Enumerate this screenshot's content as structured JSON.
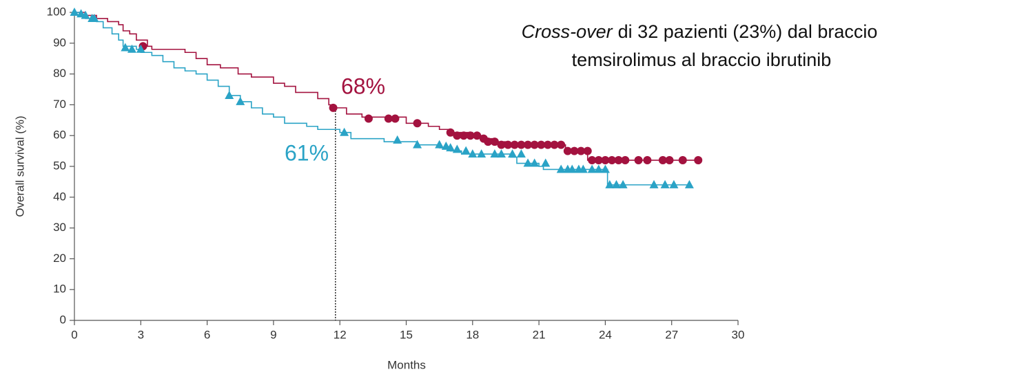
{
  "chart_data": {
    "type": "survival",
    "xlabel": "Months",
    "ylabel": "Overall survival (%)",
    "xlim": [
      0,
      30
    ],
    "xticks": [
      0,
      3,
      6,
      9,
      12,
      15,
      18,
      21,
      24,
      27,
      30
    ],
    "ylim": [
      0,
      100
    ],
    "yticks": [
      0,
      10,
      20,
      30,
      40,
      50,
      60,
      70,
      80,
      90,
      100
    ],
    "annotation": {
      "italic": "Cross-over",
      "text": "di 32 pazienti (23%) dal braccio",
      "line2": "temsirolimus al braccio ibrutinib"
    },
    "reference_line": {
      "x": 11.8,
      "y": 69
    },
    "series": [
      {
        "color": "#a3123f",
        "marker": "circle",
        "label": "68%",
        "x": [
          0,
          0.5,
          1,
          1.5,
          2,
          2.2,
          2.5,
          2.8,
          3.3,
          3.5,
          5,
          5.5,
          6,
          6.6,
          7.4,
          8,
          9,
          9.5,
          10,
          11,
          11.5,
          11.7,
          12.3,
          13,
          15,
          16,
          16.5,
          17,
          18,
          18.5,
          19,
          19.5,
          22.2,
          23.2,
          28.3
        ],
        "values": [
          100,
          99,
          98,
          97,
          96,
          94,
          93,
          91,
          89,
          88,
          87,
          85,
          83,
          82,
          80,
          79,
          77,
          76,
          74,
          72,
          70,
          69,
          67,
          66,
          64,
          63,
          62,
          61,
          60,
          59,
          58,
          57,
          55,
          52,
          52
        ],
        "censored_x": [
          3.1,
          11.7,
          13.3,
          14.2,
          14.5,
          15.5,
          17,
          17.3,
          17.6,
          17.9,
          18.2,
          18.5,
          18.7,
          19,
          19.3,
          19.6,
          19.9,
          20.2,
          20.5,
          20.8,
          21.1,
          21.4,
          21.7,
          22,
          22.3,
          22.6,
          22.9,
          23.2,
          23.4,
          23.7,
          24,
          24.3,
          24.6,
          24.9,
          25.5,
          25.9,
          26.6,
          26.9,
          27.5,
          28.2
        ],
        "censored_values": [
          89,
          69,
          65.5,
          65.5,
          65.5,
          64,
          61,
          60,
          60,
          60,
          60,
          59,
          58,
          58,
          57,
          57,
          57,
          57,
          57,
          57,
          57,
          57,
          57,
          57,
          55,
          55,
          55,
          55,
          52,
          52,
          52,
          52,
          52,
          52,
          52,
          52,
          52,
          52,
          52,
          52
        ]
      },
      {
        "color": "#2aa3c6",
        "marker": "triangle",
        "label": "61%",
        "x": [
          0,
          0.3,
          0.5,
          1,
          1.3,
          1.7,
          2,
          2.2,
          2.8,
          3,
          3.5,
          4,
          4.5,
          5,
          5.5,
          6,
          6.5,
          7,
          7.5,
          8,
          8.5,
          9,
          9.5,
          10.5,
          11,
          12,
          12.5,
          14,
          15.5,
          16.5,
          17,
          17.5,
          19.7,
          20,
          21,
          21.2,
          24.1,
          27.8
        ],
        "values": [
          100,
          99,
          98,
          97,
          95,
          93,
          91,
          89,
          88,
          87,
          86,
          84,
          82,
          81,
          80,
          78,
          76,
          73,
          71,
          69,
          67,
          66,
          64,
          63,
          62,
          61,
          59,
          58,
          57,
          56,
          55,
          54,
          53,
          51,
          50,
          49,
          44,
          44
        ],
        "censored_x": [
          0,
          0.3,
          0.5,
          0.8,
          0.9,
          2.3,
          2.6,
          3,
          7,
          7.5,
          12.2,
          14.6,
          15.5,
          16.5,
          16.8,
          17,
          17.3,
          17.7,
          18,
          18.4,
          19,
          19.3,
          19.8,
          20.2,
          20.5,
          20.8,
          21.3,
          22,
          22.3,
          22.5,
          22.8,
          23,
          23.4,
          23.7,
          24,
          24.2,
          24.5,
          24.8,
          26.2,
          26.7,
          27.1,
          27.8
        ],
        "censored_values": [
          100,
          99.5,
          99,
          98,
          98,
          88.5,
          88,
          88,
          73,
          71,
          61,
          58.5,
          57,
          57,
          56.5,
          56,
          55.5,
          55,
          54,
          54,
          54,
          54,
          54,
          54,
          51,
          51,
          51,
          49,
          49,
          49,
          49,
          49,
          49,
          49,
          49,
          44,
          44,
          44,
          44,
          44,
          44,
          44
        ]
      }
    ]
  }
}
